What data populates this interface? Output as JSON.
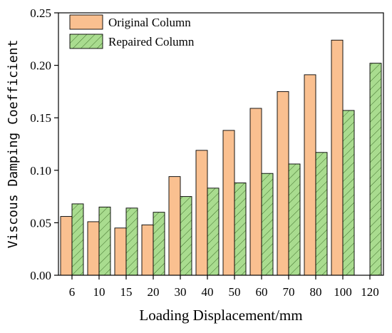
{
  "chart_data": {
    "type": "bar",
    "categories": [
      "6",
      "10",
      "15",
      "20",
      "30",
      "40",
      "50",
      "60",
      "70",
      "80",
      "100",
      "120"
    ],
    "series": [
      {
        "name": "Original Column",
        "values": [
          0.056,
          0.051,
          0.045,
          0.048,
          0.094,
          0.119,
          0.138,
          0.159,
          0.175,
          0.191,
          0.224,
          null
        ],
        "color": "#FAC090",
        "pattern": "solid"
      },
      {
        "name": "Repaired Column",
        "values": [
          0.068,
          0.065,
          0.064,
          0.06,
          0.075,
          0.083,
          0.088,
          0.097,
          0.106,
          0.117,
          0.157,
          0.202
        ],
        "color": "#A9DC8F",
        "pattern": "diagonal-hatch"
      }
    ],
    "xlabel": "Loading Displacement/mm",
    "ylabel": "Viscous Damping Coefficient",
    "ylim": [
      0.0,
      0.25
    ],
    "yticks": [
      "0.00",
      "0.05",
      "0.10",
      "0.15",
      "0.20",
      "0.25"
    ],
    "grid": false,
    "legend_position": "top-left"
  }
}
